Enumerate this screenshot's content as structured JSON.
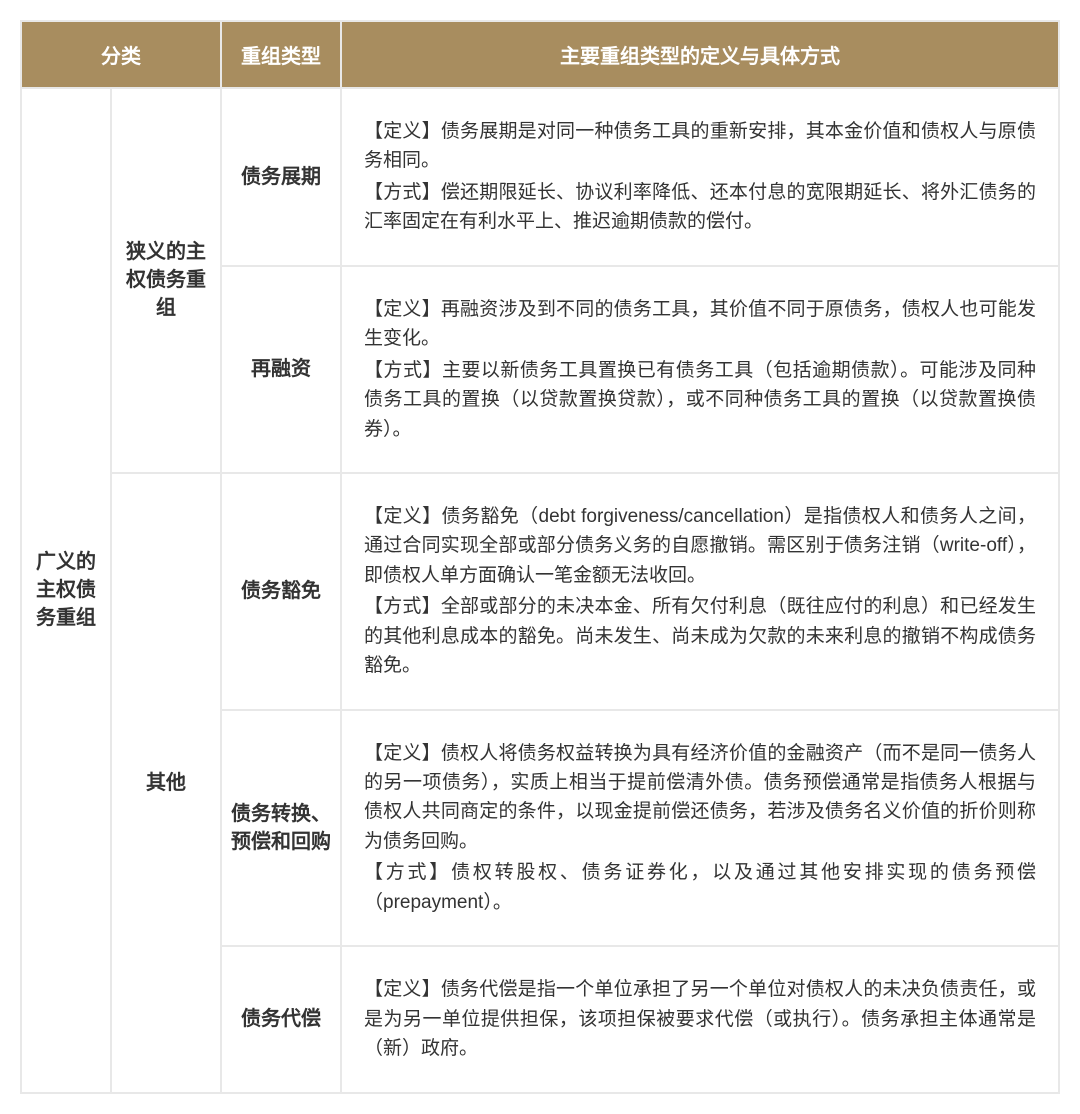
{
  "colors": {
    "header_bg": "#a88d5f",
    "header_text": "#ffffff",
    "border": "#e8e8e8",
    "body_text": "#333333",
    "background": "#ffffff"
  },
  "header": {
    "col_category": "分类",
    "col_type": "重组类型",
    "col_desc": "主要重组类型的定义与具体方式"
  },
  "category_main": "广义的主权债务重组",
  "category_sub_1": "狭义的主权债务重组",
  "category_sub_2": "其他",
  "rows": [
    {
      "type": "债务展期",
      "def": "【定义】债务展期是对同一种债务工具的重新安排，其本金价值和债权人与原债务相同。",
      "method": "【方式】偿还期限延长、协议利率降低、还本付息的宽限期延长、将外汇债务的汇率固定在有利水平上、推迟逾期债款的偿付。"
    },
    {
      "type": "再融资",
      "def": "【定义】再融资涉及到不同的债务工具，其价值不同于原债务，债权人也可能发生变化。",
      "method": "【方式】主要以新债务工具置换已有债务工具（包括逾期债款）。可能涉及同种债务工具的置换（以贷款置换贷款），或不同种债务工具的置换（以贷款置换债券）。"
    },
    {
      "type": "债务豁免",
      "def": "【定义】债务豁免（debt forgiveness/cancellation）是指债权人和债务人之间，通过合同实现全部或部分债务义务的自愿撤销。需区别于债务注销（write-off），即债权人单方面确认一笔金额无法收回。",
      "method": "【方式】全部或部分的未决本金、所有欠付利息（既往应付的利息）和已经发生的其他利息成本的豁免。尚未发生、尚未成为欠款的未来利息的撤销不构成债务豁免。"
    },
    {
      "type": "债务转换、预偿和回购",
      "def": "【定义】债权人将债务权益转换为具有经济价值的金融资产（而不是同一债务人的另一项债务），实质上相当于提前偿清外债。债务预偿通常是指债务人根据与债权人共同商定的条件，以现金提前偿还债务，若涉及债务名义价值的折价则称为债务回购。",
      "method": "【方式】债权转股权、债务证券化，以及通过其他安排实现的债务预偿（prepayment）。"
    },
    {
      "type": "债务代偿",
      "def": "【定义】债务代偿是指一个单位承担了另一个单位对债权人的未决负债责任，或是为另一单位提供担保，该项担保被要求代偿（或执行）。债务承担主体通常是（新）政府。",
      "method": ""
    }
  ]
}
